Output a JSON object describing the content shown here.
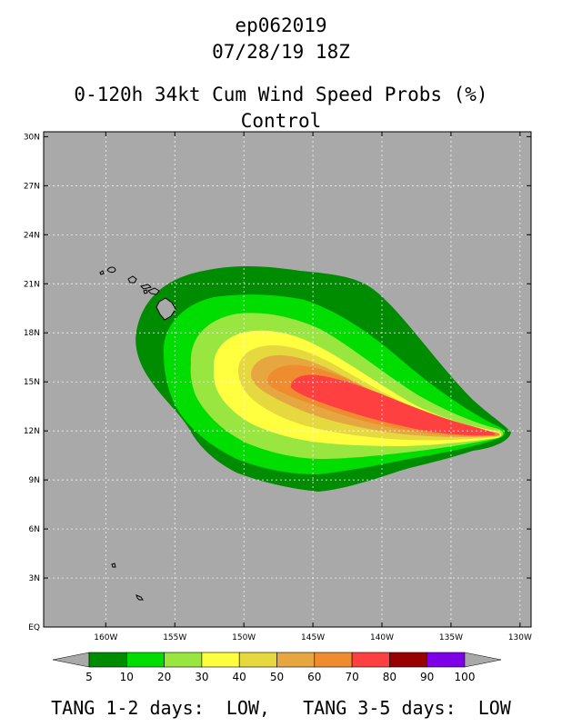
{
  "header": {
    "storm_id": "ep062019",
    "datetime": "07/28/19 18Z",
    "product_title": "0-120h 34kt Cum Wind Speed Probs (%)",
    "run_label": "Control"
  },
  "map": {
    "background_color": "#a9a9a9",
    "land_outline_color": "#000000",
    "lat_ticks": [
      "30N",
      "27N",
      "24N",
      "21N",
      "18N",
      "15N",
      "12N",
      "9N",
      "6N",
      "3N",
      "EQ"
    ],
    "lat_values": [
      30,
      27,
      24,
      21,
      18,
      15,
      12,
      9,
      6,
      3,
      0
    ],
    "lon_ticks": [
      "160W",
      "155W",
      "150W",
      "145W",
      "140W",
      "135W",
      "130W"
    ],
    "lon_values": [
      -160,
      -155,
      -150,
      -145,
      -140,
      -135,
      -130
    ],
    "lon_range": [
      -164.5,
      -129.2
    ],
    "lat_range": [
      0,
      30.3
    ]
  },
  "colorbar": {
    "labels": [
      "5",
      "10",
      "20",
      "30",
      "40",
      "50",
      "60",
      "70",
      "80",
      "90",
      "100"
    ],
    "colors": [
      "#008c00",
      "#00dd00",
      "#99e640",
      "#ffff40",
      "#e6d940",
      "#e6a640",
      "#f08c30",
      "#ff4040",
      "#990000",
      "#7e00e6"
    ],
    "extension_color": "#a9a9a9"
  },
  "footer": {
    "text": "TANG 1-2 days:  LOW,   TANG 3-5 days:  LOW"
  }
}
